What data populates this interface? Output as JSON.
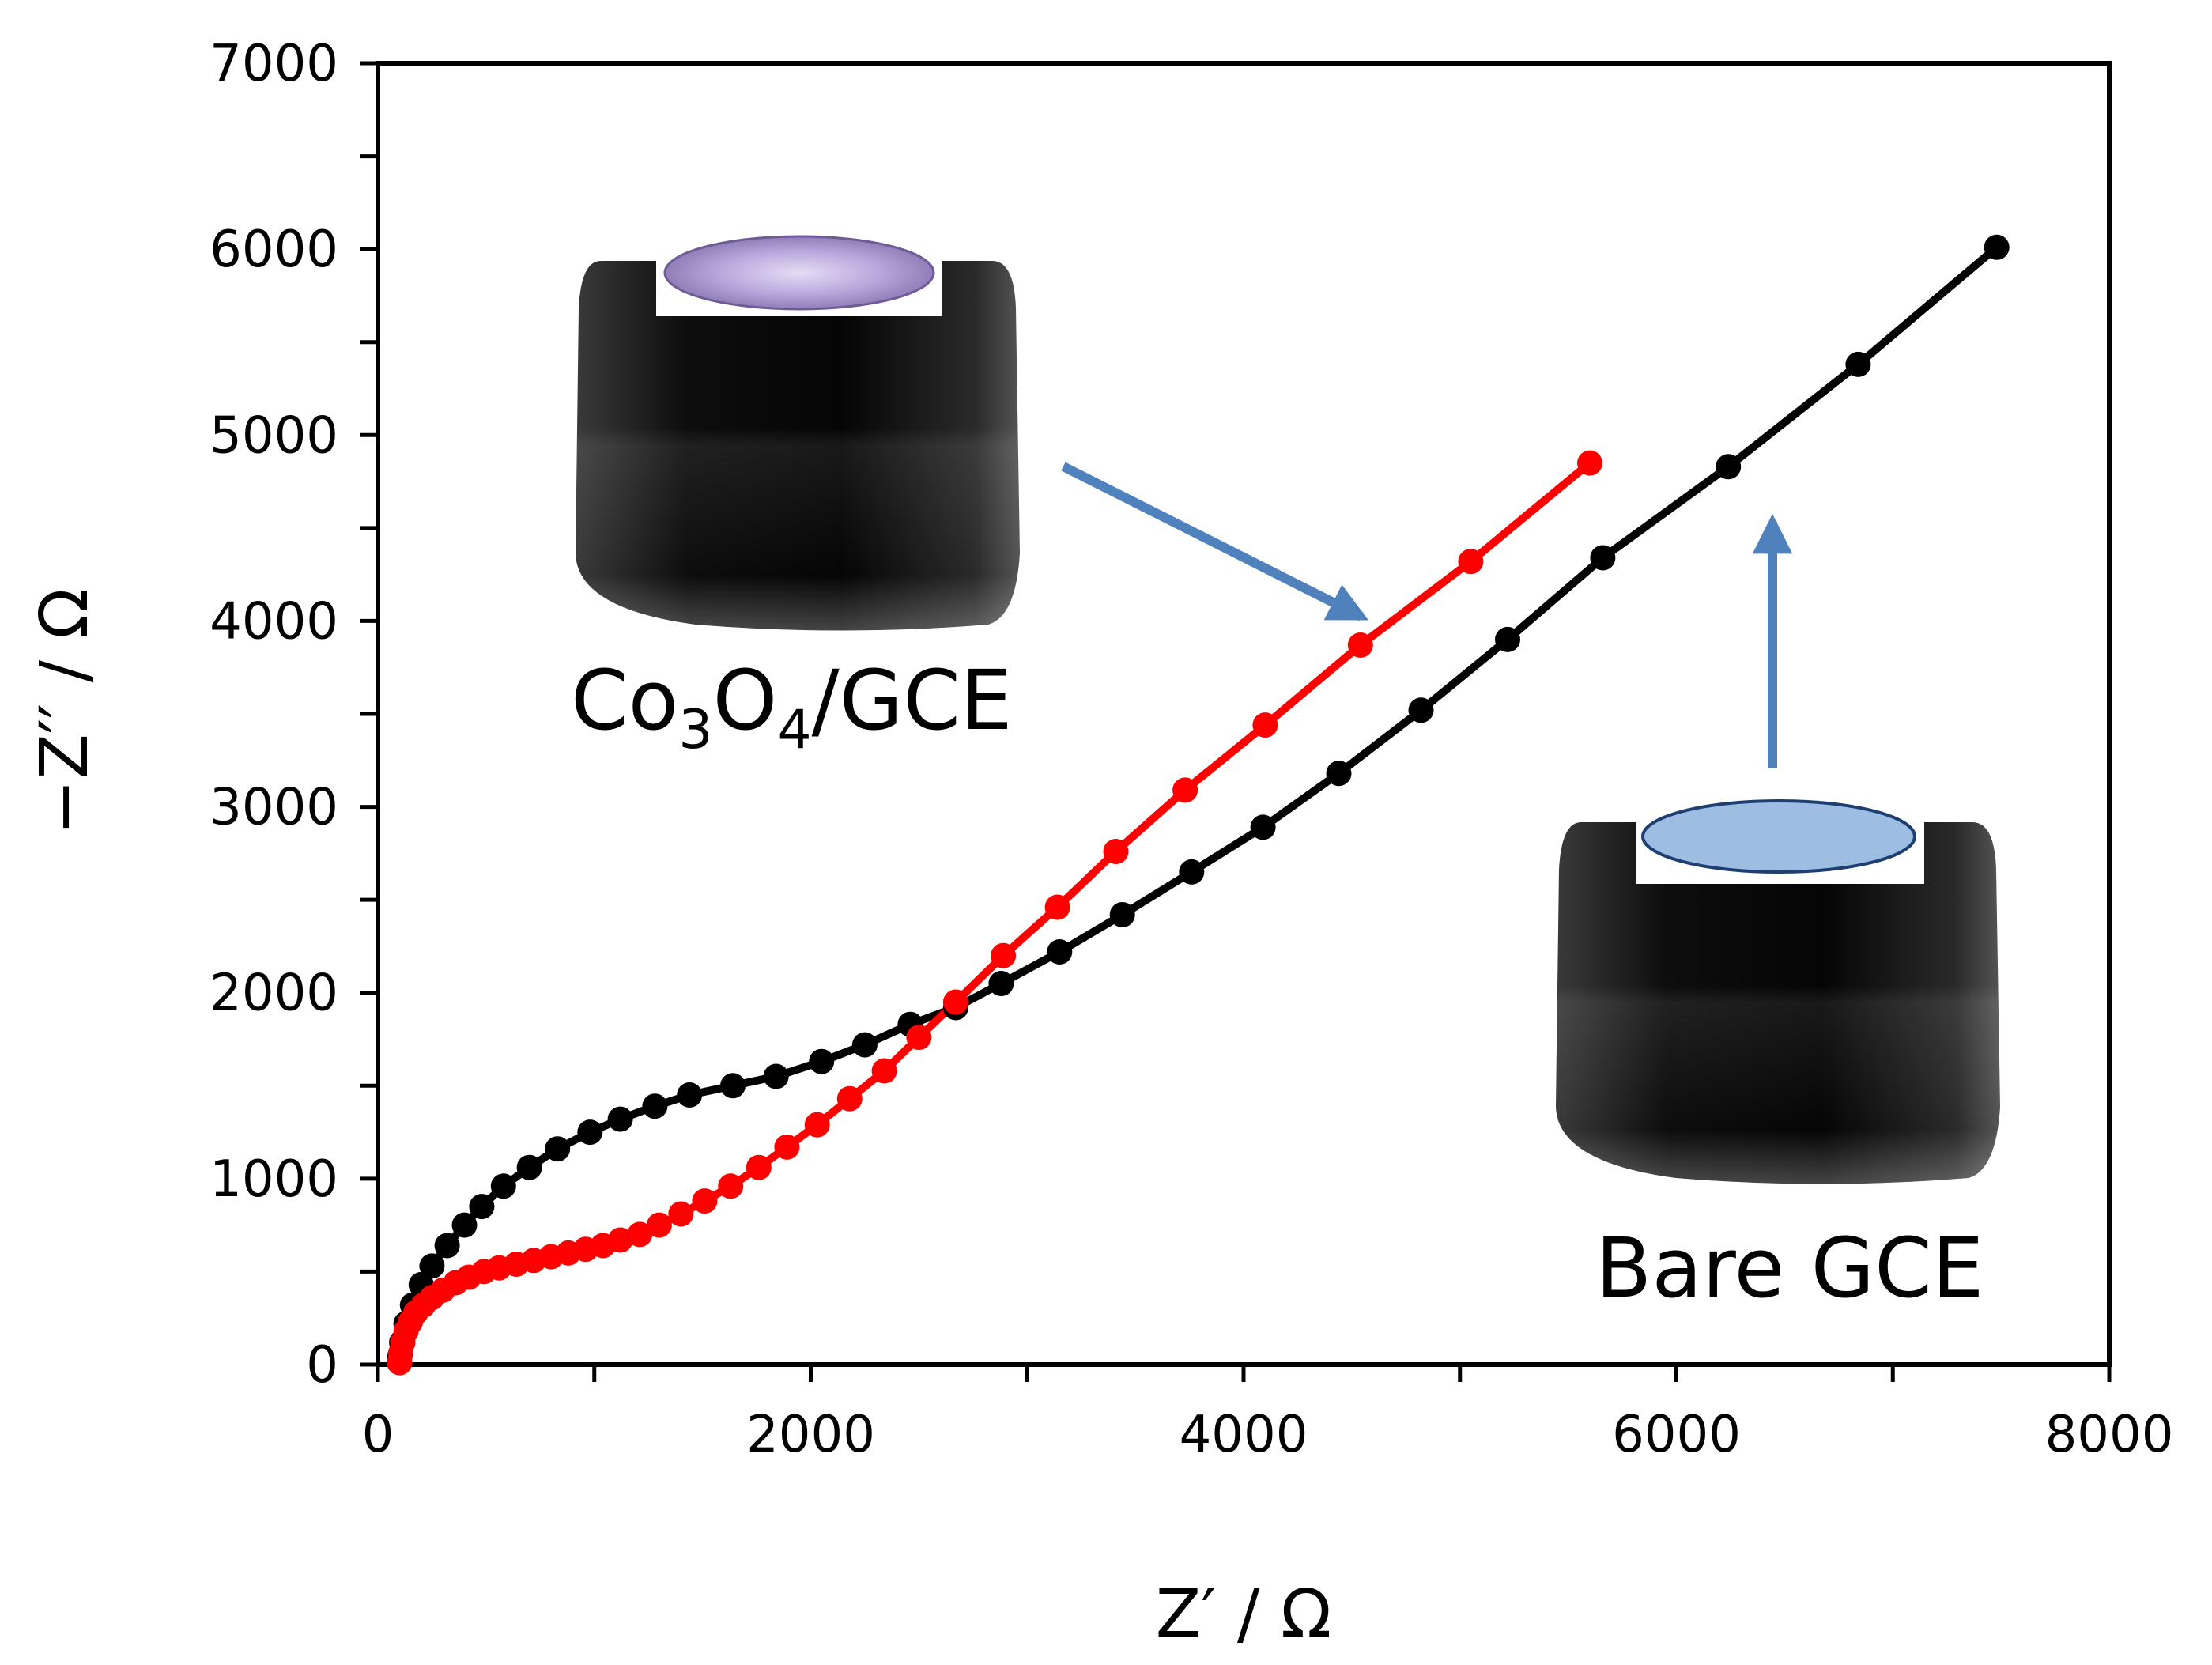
{
  "chart_data": {
    "type": "scatter",
    "title": "",
    "xlabel": "Z′ / Ω",
    "ylabel": "−Z′′ / Ω",
    "xlim": [
      0,
      8000
    ],
    "ylim": [
      0,
      7000
    ],
    "x_ticks": [
      0,
      2000,
      4000,
      6000,
      8000
    ],
    "y_ticks": [
      0,
      1000,
      2000,
      3000,
      4000,
      5000,
      6000,
      7000
    ],
    "x_tick_labels": [
      "0",
      "2000",
      "4000",
      "6000",
      "8000"
    ],
    "y_tick_labels": [
      "0",
      "1000",
      "2000",
      "3000",
      "4000",
      "5000",
      "6000",
      "7000"
    ],
    "grid": false,
    "series": [
      {
        "name": "Bare GCE",
        "color": "#000000",
        "marker": "circle",
        "line": true,
        "x": [
          100,
          110,
          130,
          160,
          200,
          250,
          320,
          400,
          480,
          580,
          700,
          830,
          980,
          1120,
          1280,
          1440,
          1640,
          1840,
          2050,
          2250,
          2460,
          2670,
          2880,
          3150,
          3440,
          3760,
          4090,
          4440,
          4820,
          5220,
          5660,
          6240,
          6840,
          7480
        ],
        "y": [
          40,
          120,
          220,
          320,
          430,
          530,
          640,
          750,
          850,
          960,
          1060,
          1160,
          1250,
          1320,
          1390,
          1450,
          1500,
          1550,
          1630,
          1720,
          1830,
          1920,
          2050,
          2220,
          2420,
          2650,
          2890,
          3180,
          3520,
          3900,
          4340,
          4830,
          5380,
          6010
        ]
      },
      {
        "name": "Co3O4/GCE",
        "color": "#ff0000",
        "marker": "circle",
        "line": true,
        "x": [
          100,
          105,
          115,
          130,
          150,
          175,
          210,
          250,
          300,
          360,
          420,
          490,
          560,
          640,
          720,
          800,
          880,
          960,
          1040,
          1120,
          1210,
          1300,
          1400,
          1510,
          1630,
          1760,
          1890,
          2030,
          2180,
          2340,
          2500,
          2670,
          2890,
          3140,
          3410,
          3730,
          4100,
          4540,
          5050,
          5600
        ],
        "y": [
          10,
          60,
          120,
          180,
          230,
          280,
          320,
          360,
          400,
          440,
          470,
          500,
          520,
          540,
          560,
          580,
          600,
          620,
          640,
          670,
          700,
          750,
          810,
          880,
          960,
          1060,
          1170,
          1290,
          1430,
          1580,
          1760,
          1950,
          2200,
          2460,
          2760,
          3090,
          3440,
          3870,
          4320,
          4850
        ]
      }
    ],
    "annotations": [
      {
        "text": "Co3O4/GCE",
        "points_to": "Co3O4/GCE curve near Z′≈4600",
        "color": "#4f81bd"
      },
      {
        "text": "Bare GCE",
        "points_to": "Bare GCE curve near Z′≈6400",
        "color": "#4f81bd"
      }
    ]
  },
  "labels": {
    "x_axis": "Z′ / Ω",
    "y_axis": "−Z′′ / Ω",
    "inset_co3o4_main": "Co",
    "inset_co3o4_sub1": "3",
    "inset_co3o4_mid": "O",
    "inset_co3o4_sub2": "4",
    "inset_co3o4_tail": "/GCE",
    "inset_bare": "Bare GCE"
  },
  "colors": {
    "arrow": "#4f81bd",
    "co3o4_surface": "#c9b8e8",
    "bare_surface": "#9dbde3",
    "electrode_body": "#1a1a1a"
  }
}
